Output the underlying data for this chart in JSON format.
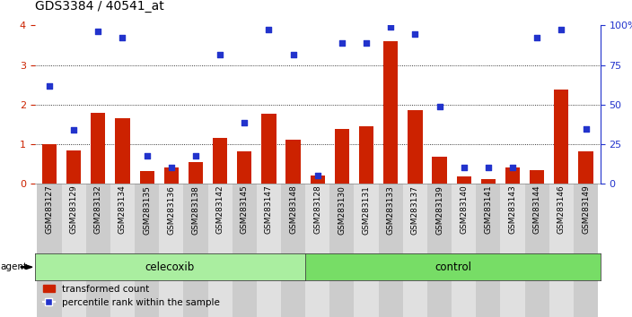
{
  "title": "GDS3384 / 40541_at",
  "samples": [
    "GSM283127",
    "GSM283129",
    "GSM283132",
    "GSM283134",
    "GSM283135",
    "GSM283136",
    "GSM283138",
    "GSM283142",
    "GSM283145",
    "GSM283147",
    "GSM283148",
    "GSM283128",
    "GSM283130",
    "GSM283131",
    "GSM283133",
    "GSM283137",
    "GSM283139",
    "GSM283140",
    "GSM283141",
    "GSM283143",
    "GSM283144",
    "GSM283146",
    "GSM283149"
  ],
  "red_values": [
    1.0,
    0.85,
    1.8,
    1.65,
    0.32,
    0.42,
    0.56,
    1.15,
    0.82,
    1.78,
    1.12,
    0.22,
    1.38,
    1.46,
    3.6,
    1.85,
    0.68,
    0.18,
    0.13,
    0.42,
    0.35,
    2.38,
    0.82
  ],
  "blue_values": [
    2.48,
    1.36,
    3.85,
    3.68,
    0.7,
    0.42,
    0.7,
    3.27,
    1.55,
    3.9,
    3.26,
    0.22,
    3.55,
    3.56,
    3.97,
    3.78,
    1.95,
    0.42,
    0.42,
    0.42,
    3.68,
    3.9,
    1.38
  ],
  "celecoxib_count": 11,
  "control_count": 12,
  "ylim_left": [
    0,
    4
  ],
  "ylim_right": [
    0,
    100
  ],
  "yticks_left": [
    0,
    1,
    2,
    3,
    4
  ],
  "yticks_right": [
    0,
    25,
    50,
    75,
    100
  ],
  "yticklabels_right": [
    "0",
    "25",
    "50",
    "75",
    "100%"
  ],
  "bar_color": "#cc2200",
  "dot_color": "#2233cc",
  "celecoxib_color": "#aaeea0",
  "control_color": "#77dd66",
  "agent_label": "agent",
  "celecoxib_label": "celecoxib",
  "control_label": "control",
  "legend_red": "transformed count",
  "legend_blue": "percentile rank within the sample",
  "grid_yticks": [
    1,
    2,
    3
  ],
  "title_fontsize": 10,
  "bar_width": 0.6
}
